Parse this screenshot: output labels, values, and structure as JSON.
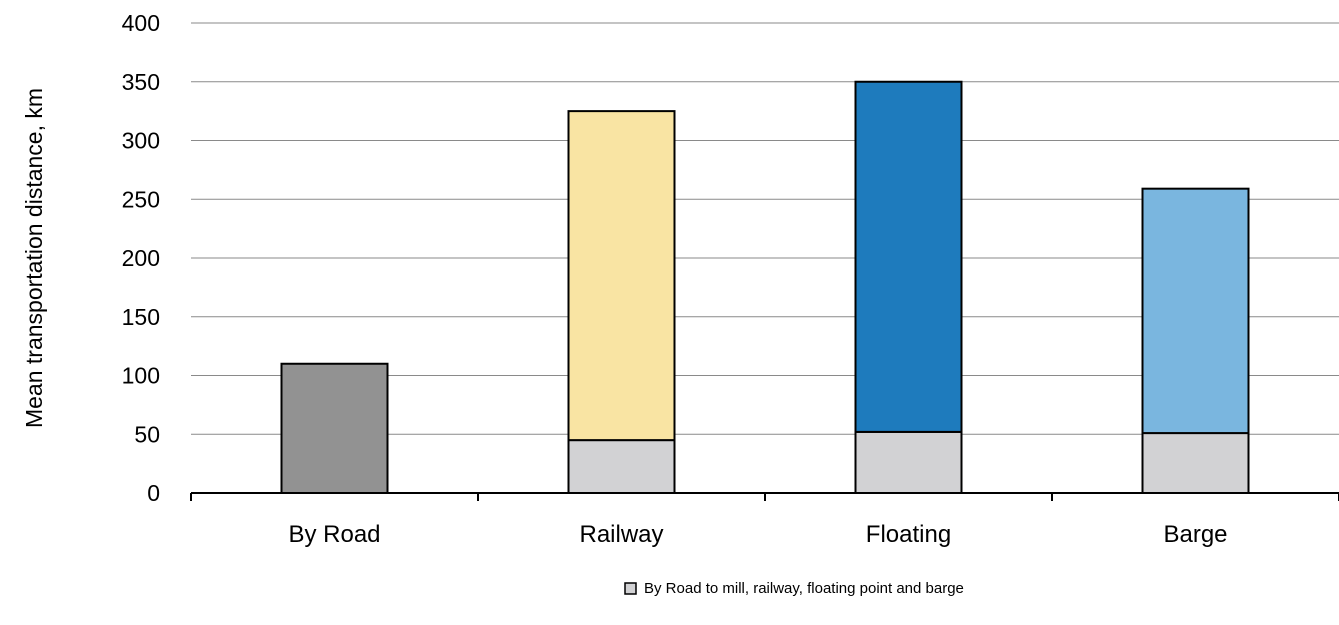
{
  "chart_data": {
    "type": "bar",
    "stacked": true,
    "categories": [
      "By Road",
      "Railway",
      "Floating",
      "Barge"
    ],
    "ylabel": "Mean  transportation distance,  km",
    "xlabel": "",
    "ylim": [
      0,
      400
    ],
    "yticks": [
      0,
      50,
      100,
      150,
      200,
      250,
      300,
      350,
      400
    ],
    "grid": true,
    "legend_position": "bottom",
    "segments": [
      {
        "category": "By Road",
        "bottom": 0,
        "value": 110,
        "color": "#929292"
      },
      {
        "category": "Railway",
        "bottom": 0,
        "value": 45,
        "color": "#d2d2d4"
      },
      {
        "category": "Railway",
        "bottom": 45,
        "value": 280,
        "color": "#f9e4a3"
      },
      {
        "category": "Floating",
        "bottom": 0,
        "value": 52,
        "color": "#d2d2d4"
      },
      {
        "category": "Floating",
        "bottom": 52,
        "value": 298,
        "color": "#1e7bbd"
      },
      {
        "category": "Barge",
        "bottom": 0,
        "value": 51,
        "color": "#d2d2d4"
      },
      {
        "category": "Barge",
        "bottom": 51,
        "value": 208,
        "color": "#7ab6df"
      }
    ],
    "legend": [
      {
        "label": "By Road to mill, railway, floating point and barge",
        "color": "#d2d2d4"
      }
    ]
  }
}
